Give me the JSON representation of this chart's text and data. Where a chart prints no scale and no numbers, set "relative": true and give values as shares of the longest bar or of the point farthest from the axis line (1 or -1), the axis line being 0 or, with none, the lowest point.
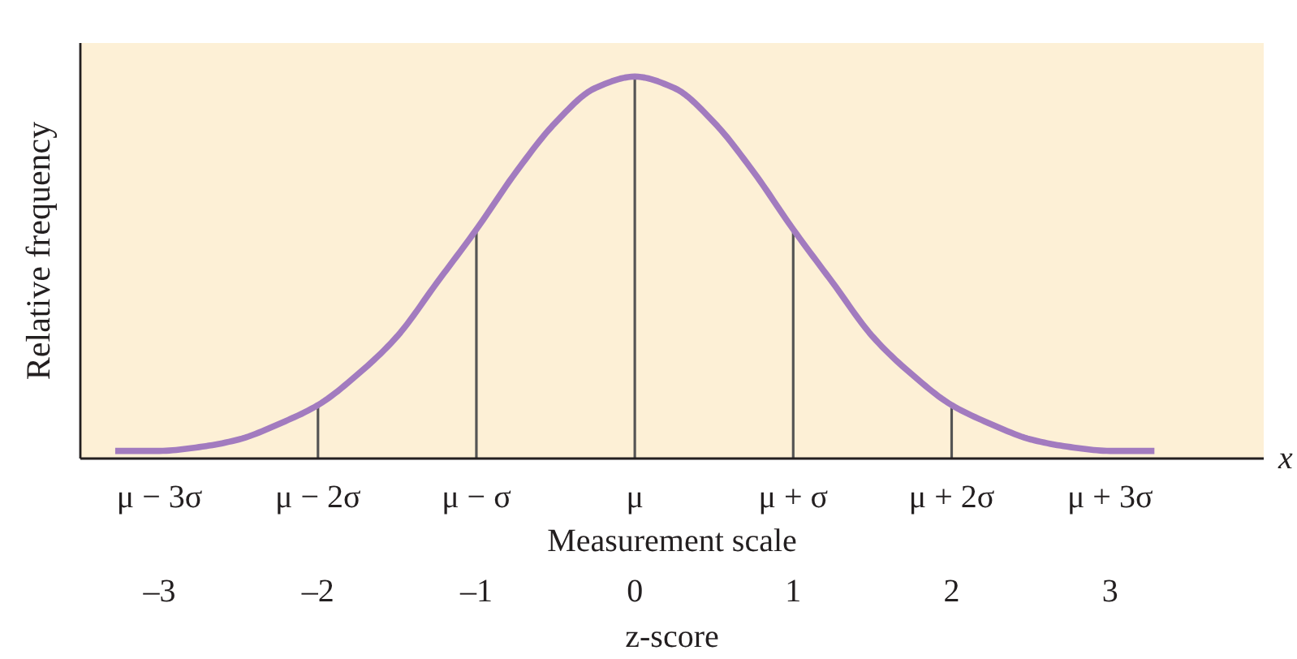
{
  "chart_data": {
    "type": "line",
    "relative": true,
    "xlabel": "Measurement scale",
    "ylabel": "Relative frequency",
    "x2label": "z-score",
    "annotations": [
      "x"
    ],
    "grid": false,
    "marker": "none",
    "xlim": [
      -3.5,
      3.97
    ],
    "xticks": [
      {
        "value": -3,
        "label": "μ − 3σ"
      },
      {
        "value": -2,
        "label": "μ − 2σ"
      },
      {
        "value": -1,
        "label": "μ − σ"
      },
      {
        "value": 0,
        "label": "μ"
      },
      {
        "value": 1,
        "label": "μ + σ"
      },
      {
        "value": 2,
        "label": "μ + 2σ"
      },
      {
        "value": 3,
        "label": "μ + 3σ"
      }
    ],
    "x2lim": [
      -3.5,
      3.97
    ],
    "x2ticks": [
      {
        "value": -3,
        "label": "–3"
      },
      {
        "value": -2,
        "label": "–2"
      },
      {
        "value": -1,
        "label": "–1"
      },
      0,
      1,
      2,
      3
    ],
    "series": [
      {
        "type": "bar",
        "color": "#555555",
        "x": [
          -2,
          -1,
          0,
          1,
          2
        ],
        "values": [
          0.14,
          0.6,
          1.0,
          0.6,
          0.14
        ]
      },
      {
        "color": "#a27bbf",
        "x": [
          -3.28,
          -3,
          -2.75,
          -2.5,
          -2.25,
          -2,
          -1.75,
          -1.5,
          -1.25,
          -1,
          -0.75,
          -0.5,
          -0.25,
          0,
          0.25,
          0.5,
          0.75,
          1,
          1.25,
          1.5,
          1.75,
          2,
          2.25,
          2.5,
          2.75,
          3,
          3.28
        ],
        "values": [
          0.02,
          0.02,
          0.03,
          0.05,
          0.09,
          0.14,
          0.22,
          0.32,
          0.46,
          0.6,
          0.75,
          0.88,
          0.97,
          1.0,
          0.97,
          0.88,
          0.75,
          0.6,
          0.46,
          0.32,
          0.22,
          0.14,
          0.09,
          0.05,
          0.03,
          0.02,
          0.02
        ]
      }
    ]
  }
}
